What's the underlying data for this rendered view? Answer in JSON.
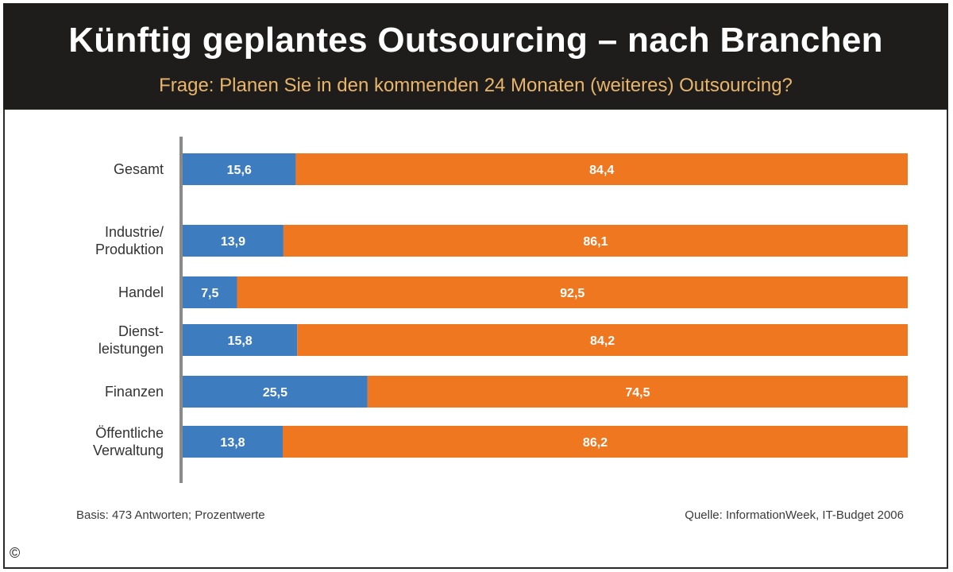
{
  "chart_data": {
    "type": "bar",
    "orientation": "horizontal",
    "stacked": true,
    "title": "Künftig geplantes Outsourcing – nach Branchen",
    "subtitle": "Frage: Planen Sie in den kommenden 24 Monaten (weiteres) Outsourcing?",
    "categories": [
      "Gesamt",
      "Industrie/ Produktion",
      "Handel",
      "Dienst- leistungen",
      "Finanzen",
      "Öffentliche Verwaltung"
    ],
    "series": [
      {
        "values": [
          15.6,
          13.9,
          7.5,
          15.8,
          25.5,
          13.8
        ],
        "value_labels": [
          "15,6",
          "13,9",
          "7,5",
          "15,8",
          "25,5",
          "13,8"
        ],
        "color": "#3e7cc0"
      },
      {
        "values": [
          84.4,
          86.1,
          92.5,
          84.2,
          74.5,
          86.2
        ],
        "value_labels": [
          "84,4",
          "86,1",
          "92,5",
          "84,2",
          "74,5",
          "86,2"
        ],
        "color": "#ef7720"
      }
    ],
    "xlim": [
      0,
      100
    ],
    "grid": false,
    "legend": "none"
  },
  "footer": {
    "basis": "Basis: 473 Antworten; Prozentwerte",
    "source": "Quelle: InformationWeek, IT-Budget 2006"
  },
  "copyright_symbol": "©"
}
